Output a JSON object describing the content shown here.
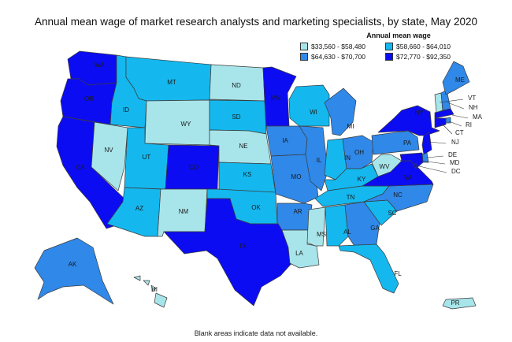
{
  "title": "Annual mean wage of market research analysts and marketing specialists, by state, May 2020",
  "legend": {
    "title": "Annual mean wage",
    "items": [
      {
        "label": "$33,560 - $58,480",
        "color": "#a8e5ea"
      },
      {
        "label": "$58,660 - $64,010",
        "color": "#14b8ef"
      },
      {
        "label": "$64,630 - $70,700",
        "color": "#3088e8"
      },
      {
        "label": "$72,770 - $92,350",
        "color": "#0c0cf2"
      }
    ]
  },
  "footnote": "Blank areas indicate data not available.",
  "states": [
    {
      "code": "WA",
      "tier": 3
    },
    {
      "code": "OR",
      "tier": 3
    },
    {
      "code": "CA",
      "tier": 3
    },
    {
      "code": "ID",
      "tier": 1
    },
    {
      "code": "NV",
      "tier": 0
    },
    {
      "code": "MT",
      "tier": 1
    },
    {
      "code": "WY",
      "tier": 0
    },
    {
      "code": "UT",
      "tier": 1
    },
    {
      "code": "AZ",
      "tier": 1
    },
    {
      "code": "CO",
      "tier": 3
    },
    {
      "code": "NM",
      "tier": 0
    },
    {
      "code": "ND",
      "tier": 0
    },
    {
      "code": "SD",
      "tier": 1
    },
    {
      "code": "NE",
      "tier": 0
    },
    {
      "code": "KS",
      "tier": 1
    },
    {
      "code": "OK",
      "tier": 1
    },
    {
      "code": "TX",
      "tier": 3
    },
    {
      "code": "MN",
      "tier": 3
    },
    {
      "code": "IA",
      "tier": 2
    },
    {
      "code": "MO",
      "tier": 2
    },
    {
      "code": "AR",
      "tier": 2
    },
    {
      "code": "LA",
      "tier": 0
    },
    {
      "code": "WI",
      "tier": 1
    },
    {
      "code": "IL",
      "tier": 2
    },
    {
      "code": "MI",
      "tier": 2
    },
    {
      "code": "IN",
      "tier": 1
    },
    {
      "code": "OH",
      "tier": 2
    },
    {
      "code": "KY",
      "tier": 1
    },
    {
      "code": "TN",
      "tier": 1
    },
    {
      "code": "MS",
      "tier": 0
    },
    {
      "code": "AL",
      "tier": 1
    },
    {
      "code": "GA",
      "tier": 2
    },
    {
      "code": "FL",
      "tier": 1
    },
    {
      "code": "SC",
      "tier": 1
    },
    {
      "code": "NC",
      "tier": 2
    },
    {
      "code": "VA",
      "tier": 3
    },
    {
      "code": "WV",
      "tier": 0
    },
    {
      "code": "PA",
      "tier": 2
    },
    {
      "code": "NY",
      "tier": 3
    },
    {
      "code": "VT",
      "tier": 0
    },
    {
      "code": "NH",
      "tier": 2
    },
    {
      "code": "ME",
      "tier": 2
    },
    {
      "code": "MA",
      "tier": 3
    },
    {
      "code": "RI",
      "tier": 2
    },
    {
      "code": "CT",
      "tier": 3
    },
    {
      "code": "NJ",
      "tier": 3
    },
    {
      "code": "DE",
      "tier": 2
    },
    {
      "code": "MD",
      "tier": 3
    },
    {
      "code": "DC",
      "tier": 3
    },
    {
      "code": "AK",
      "tier": 2
    },
    {
      "code": "HI",
      "tier": 0
    },
    {
      "code": "PR",
      "tier": 0
    }
  ]
}
